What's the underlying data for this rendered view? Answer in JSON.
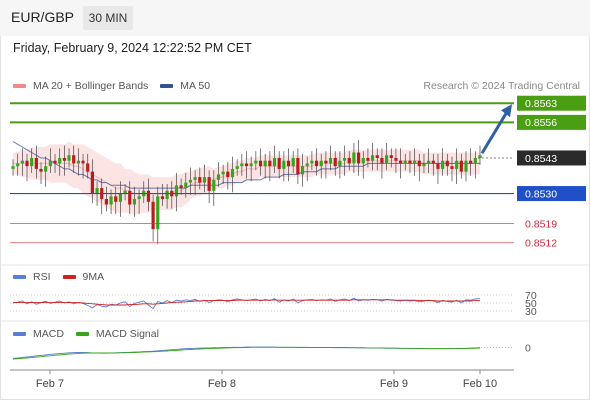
{
  "header": {
    "pair": "EUR/GBP",
    "timeframe_tab": "30 MIN"
  },
  "datetime": "Friday, February 9, 2024 12:22:52 PM CET",
  "credit": "Research © 2024 Trading Central",
  "legends": {
    "price": [
      {
        "label": "MA 20 + Bollinger Bands",
        "color": "#f08a8a"
      },
      {
        "label": "MA 50",
        "color": "#33508f"
      }
    ],
    "rsi": [
      {
        "label": "RSI",
        "color": "#5a7fd6"
      },
      {
        "label": "9MA",
        "color": "#d21f1f"
      }
    ],
    "macd": [
      {
        "label": "MACD",
        "color": "#5a7fd6"
      },
      {
        "label": "MACD Signal",
        "color": "#3aa51c"
      }
    ]
  },
  "colors": {
    "resistance": "#4a9e12",
    "support": "#1f50c8",
    "target": "#d0283a",
    "current": "#2b2b2b",
    "arrow": "#2f5fa3",
    "candle_up": "#3aa51c",
    "candle_down": "#b81c1c",
    "band_fill": "#fde4e4"
  },
  "chart_data": [
    {
      "type": "candlestick",
      "title": "EUR/GBP",
      "timeframe": "30 MIN",
      "ylim": [
        0.8505,
        0.8566
      ],
      "x_ticks": [
        "Feb 7",
        "Feb 8",
        "Feb 9",
        "Feb 10"
      ],
      "price_levels": {
        "resistances": [
          0.8563,
          0.8556
        ],
        "current": 0.8543,
        "support": 0.853,
        "targets": [
          0.8519,
          0.8512
        ]
      },
      "close": [
        0.854,
        0.8541,
        0.8542,
        0.854,
        0.8543,
        0.8539,
        0.8538,
        0.854,
        0.8542,
        0.8541,
        0.8543,
        0.8542,
        0.8544,
        0.8541,
        0.8542,
        0.8541,
        0.8538,
        0.853,
        0.8532,
        0.8528,
        0.8526,
        0.8529,
        0.8527,
        0.853,
        0.8531,
        0.8526,
        0.8528,
        0.8529,
        0.8531,
        0.8527,
        0.8517,
        0.8529,
        0.8528,
        0.8531,
        0.8529,
        0.8533,
        0.8532,
        0.8534,
        0.8535,
        0.8536,
        0.8534,
        0.8536,
        0.8531,
        0.8535,
        0.8537,
        0.8538,
        0.8536,
        0.8539,
        0.854,
        0.8541,
        0.854,
        0.8541,
        0.8542,
        0.854,
        0.8542,
        0.854,
        0.8543,
        0.8539,
        0.8542,
        0.854,
        0.8543,
        0.8537,
        0.854,
        0.8541,
        0.8542,
        0.854,
        0.8542,
        0.8541,
        0.8543,
        0.854,
        0.8542,
        0.8543,
        0.8541,
        0.8545,
        0.8541,
        0.8543,
        0.8542,
        0.8544,
        0.8543,
        0.8541,
        0.8544,
        0.8543,
        0.8542,
        0.8541,
        0.8542,
        0.8541,
        0.8542,
        0.854,
        0.8541,
        0.8542,
        0.8541,
        0.8539,
        0.8542,
        0.854,
        0.8539,
        0.8542,
        0.8538,
        0.8542,
        0.8541,
        0.8543,
        0.8544
      ],
      "series": [
        {
          "name": "MA 20 + Bollinger Bands",
          "values": [
            0.8541,
            0.8541,
            0.8541,
            0.8541,
            0.8541,
            0.8541,
            0.8541,
            0.8541,
            0.8541,
            0.8541,
            0.8541,
            0.8541,
            0.8541,
            0.854,
            0.854,
            0.8539,
            0.8538,
            0.8537,
            0.8536,
            0.8535,
            0.8534,
            0.8533,
            0.8532,
            0.8532,
            0.8531,
            0.8531,
            0.853,
            0.853,
            0.853,
            0.853,
            0.853,
            0.853,
            0.853,
            0.853,
            0.853,
            0.8531,
            0.8531,
            0.8532,
            0.8533,
            0.8534,
            0.8534,
            0.8535,
            0.8535,
            0.8535,
            0.8536,
            0.8536,
            0.8537,
            0.8537,
            0.8538,
            0.8538,
            0.8539,
            0.8539,
            0.8539,
            0.854,
            0.854,
            0.854,
            0.854,
            0.854,
            0.854,
            0.854,
            0.854,
            0.854,
            0.854,
            0.854,
            0.854,
            0.8541,
            0.8541,
            0.8541,
            0.8541,
            0.8541,
            0.8541,
            0.8541,
            0.8542,
            0.8542,
            0.8542,
            0.8542,
            0.8542,
            0.8542,
            0.8542,
            0.8542,
            0.8542,
            0.8542,
            0.8542,
            0.8542,
            0.8542,
            0.8542,
            0.8542,
            0.8542,
            0.8541,
            0.8541,
            0.8541,
            0.8541,
            0.8541,
            0.8541,
            0.8541,
            0.8541,
            0.8541,
            0.8541,
            0.8541,
            0.8541,
            0.8541
          ]
        },
        {
          "name": "MA 50",
          "values": [
            0.8549,
            0.8548,
            0.8547,
            0.8546,
            0.8545,
            0.8544,
            0.8543,
            0.8543,
            0.8542,
            0.8541,
            0.854,
            0.8539,
            0.8539,
            0.8538,
            0.8537,
            0.8537,
            0.8536,
            0.8535,
            0.8535,
            0.8534,
            0.8534,
            0.8533,
            0.8533,
            0.8533,
            0.8533,
            0.8532,
            0.8532,
            0.8532,
            0.8532,
            0.8532,
            0.8532,
            0.8532,
            0.8532,
            0.8532,
            0.8532,
            0.8532,
            0.8532,
            0.8532,
            0.8533,
            0.8533,
            0.8533,
            0.8533,
            0.8533,
            0.8533,
            0.8533,
            0.8534,
            0.8534,
            0.8534,
            0.8534,
            0.8534,
            0.8535,
            0.8535,
            0.8535,
            0.8535,
            0.8536,
            0.8536,
            0.8536,
            0.8536,
            0.8537,
            0.8537,
            0.8537,
            0.8537,
            0.8538,
            0.8538,
            0.8538,
            0.8538,
            0.8539,
            0.8539,
            0.8539,
            0.8539,
            0.854,
            0.854,
            0.854,
            0.854,
            0.854,
            0.854,
            0.8541,
            0.8541,
            0.8541,
            0.8541,
            0.8541,
            0.8541,
            0.8541,
            0.8541,
            0.8541,
            0.8541,
            0.8541,
            0.8541,
            0.8541,
            0.8541,
            0.8541,
            0.8541,
            0.8541,
            0.8541,
            0.8541,
            0.8541,
            0.8541,
            0.8541,
            0.8541,
            0.8541,
            0.8541
          ]
        }
      ],
      "band_width": [
        0.0004,
        0.0004,
        0.0005,
        0.0005,
        0.0006,
        0.0006,
        0.0006,
        0.0006,
        0.0007,
        0.0007,
        0.0007,
        0.0007,
        0.0008,
        0.0008,
        0.0008,
        0.0009,
        0.0009,
        0.0009,
        0.0009,
        0.0009,
        0.0009,
        0.0009,
        0.0009,
        0.0009,
        0.0008,
        0.0008,
        0.0008,
        0.0007,
        0.0007,
        0.0007,
        0.0006,
        0.0006,
        0.0006,
        0.0006,
        0.0006,
        0.0006,
        0.0006,
        0.0006,
        0.0005,
        0.0005,
        0.0005,
        0.0005,
        0.0005,
        0.0004,
        0.0004,
        0.0004,
        0.0004,
        0.0004,
        0.0004,
        0.0004,
        0.0004,
        0.0004,
        0.0004,
        0.0004,
        0.0004,
        0.0004,
        0.0004,
        0.0004,
        0.0004,
        0.0004,
        0.0004,
        0.0004,
        0.0004,
        0.0004,
        0.0004,
        0.0004,
        0.0004,
        0.0004,
        0.0004,
        0.0004,
        0.0004,
        0.0004,
        0.0004,
        0.0004,
        0.0004,
        0.0004,
        0.0004,
        0.0004,
        0.0004,
        0.0004,
        0.0004,
        0.0004,
        0.0004,
        0.0004,
        0.0004,
        0.0004,
        0.0004,
        0.0004,
        0.0004,
        0.0004,
        0.0004,
        0.0004,
        0.0004,
        0.0004,
        0.0004,
        0.0004,
        0.0004,
        0.0004,
        0.0004,
        0.0004,
        0.0004
      ]
    },
    {
      "type": "line",
      "title": "RSI",
      "ylim": [
        0,
        100
      ],
      "y_ticks": [
        30,
        50,
        70
      ],
      "series": [
        {
          "name": "RSI",
          "values": [
            50,
            52,
            55,
            48,
            53,
            47,
            51,
            54,
            49,
            52,
            55,
            50,
            53,
            48,
            51,
            49,
            44,
            38,
            46,
            42,
            40,
            47,
            45,
            50,
            53,
            41,
            49,
            52,
            55,
            45,
            36,
            54,
            50,
            56,
            51,
            57,
            55,
            58,
            56,
            59,
            54,
            57,
            51,
            56,
            58,
            57,
            53,
            58,
            60,
            58,
            56,
            58,
            60,
            55,
            59,
            56,
            61,
            52,
            58,
            55,
            60,
            50,
            56,
            58,
            59,
            56,
            58,
            57,
            60,
            54,
            58,
            60,
            56,
            62,
            55,
            58,
            57,
            59,
            58,
            55,
            59,
            57,
            56,
            55,
            57,
            55,
            56,
            53,
            55,
            57,
            55,
            51,
            57,
            54,
            52,
            57,
            50,
            58,
            57,
            60,
            61
          ]
        },
        {
          "name": "9MA",
          "values": [
            51,
            51,
            51,
            51,
            51,
            51,
            51,
            51,
            51,
            51,
            51,
            51,
            51,
            51,
            51,
            50,
            49,
            48,
            47,
            46,
            45,
            45,
            45,
            45,
            45,
            46,
            46,
            47,
            48,
            48,
            47,
            48,
            49,
            50,
            51,
            52,
            52,
            53,
            54,
            55,
            55,
            56,
            56,
            56,
            56,
            56,
            56,
            56,
            57,
            57,
            57,
            57,
            57,
            57,
            57,
            57,
            58,
            57,
            57,
            57,
            57,
            57,
            57,
            57,
            57,
            57,
            57,
            57,
            57,
            57,
            57,
            57,
            57,
            58,
            58,
            58,
            58,
            58,
            58,
            58,
            58,
            58,
            57,
            57,
            57,
            57,
            57,
            56,
            56,
            56,
            56,
            55,
            55,
            55,
            55,
            55,
            55,
            55,
            55,
            56,
            56
          ]
        }
      ]
    },
    {
      "type": "line",
      "title": "MACD",
      "y_ticks": [
        0
      ],
      "ylim": [
        -0.0008,
        0.0004
      ],
      "series": [
        {
          "name": "MACD",
          "values": [
            -0.0006,
            -0.00058,
            -0.00055,
            -0.00052,
            -0.0005,
            -0.00046,
            -0.00044,
            -0.00041,
            -0.00038,
            -0.00036,
            -0.00034,
            -0.00032,
            -0.0003,
            -0.00029,
            -0.00028,
            -0.00028,
            -0.00029,
            -0.00031,
            -0.00031,
            -0.00032,
            -0.00032,
            -0.00031,
            -0.0003,
            -0.00029,
            -0.00028,
            -0.00027,
            -0.00026,
            -0.00025,
            -0.00023,
            -0.00022,
            -0.00021,
            -0.00019,
            -0.00017,
            -0.00015,
            -0.00013,
            -0.00011,
            -9e-05,
            -7e-05,
            -6e-05,
            -5e-05,
            -4e-05,
            -3e-05,
            -3e-05,
            -2e-05,
            -2e-05,
            -1e-05,
            -1e-05,
            0.0,
            0.0,
            0.0,
            1e-05,
            1e-05,
            1e-05,
            1e-05,
            1e-05,
            1e-05,
            1e-05,
            0.0,
            0.0,
            0.0,
            0.0,
            -1e-05,
            -1e-05,
            -1e-05,
            -1e-05,
            -1e-05,
            -1e-05,
            -1e-05,
            -1e-05,
            -2e-05,
            -2e-05,
            -2e-05,
            -2e-05,
            -2e-05,
            -3e-05,
            -3e-05,
            -3e-05,
            -4e-05,
            -4e-05,
            -4e-05,
            -5e-05,
            -5e-05,
            -5e-05,
            -6e-05,
            -6e-05,
            -6e-05,
            -7e-05,
            -7e-05,
            -7e-05,
            -8e-05,
            -8e-05,
            -8e-05,
            -8e-05,
            -8e-05,
            -7e-05,
            -7e-05,
            -6e-05,
            -5e-05,
            -4e-05,
            -3e-05,
            -2e-05
          ]
        },
        {
          "name": "MACD Signal",
          "values": [
            -0.00064,
            -0.00062,
            -0.0006,
            -0.00058,
            -0.00056,
            -0.00053,
            -0.00051,
            -0.00048,
            -0.00046,
            -0.00043,
            -0.00041,
            -0.00039,
            -0.00037,
            -0.00035,
            -0.00033,
            -0.00032,
            -0.00031,
            -0.00031,
            -0.00031,
            -0.00031,
            -0.00031,
            -0.00031,
            -0.00031,
            -0.0003,
            -0.0003,
            -0.00029,
            -0.00028,
            -0.00027,
            -0.00026,
            -0.00025,
            -0.00024,
            -0.00023,
            -0.00021,
            -0.0002,
            -0.00018,
            -0.00017,
            -0.00015,
            -0.00013,
            -0.00012,
            -0.0001,
            -9e-05,
            -8e-05,
            -7e-05,
            -6e-05,
            -5e-05,
            -4e-05,
            -3e-05,
            -2e-05,
            -2e-05,
            -1e-05,
            -1e-05,
            0.0,
            0.0,
            0.0,
            0.0,
            0.0,
            0.0,
            0.0,
            0.0,
            0.0,
            0.0,
            0.0,
            0.0,
            0.0,
            -1e-05,
            -1e-05,
            -1e-05,
            -1e-05,
            -1e-05,
            -1e-05,
            -1e-05,
            -1e-05,
            -2e-05,
            -2e-05,
            -2e-05,
            -2e-05,
            -3e-05,
            -3e-05,
            -3e-05,
            -3e-05,
            -4e-05,
            -4e-05,
            -4e-05,
            -5e-05,
            -5e-05,
            -5e-05,
            -6e-05,
            -6e-05,
            -6e-05,
            -7e-05,
            -7e-05,
            -7e-05,
            -7e-05,
            -7e-05,
            -7e-05,
            -7e-05,
            -7e-05,
            -6e-05,
            -6e-05,
            -5e-05,
            -4e-05
          ]
        }
      ]
    }
  ]
}
